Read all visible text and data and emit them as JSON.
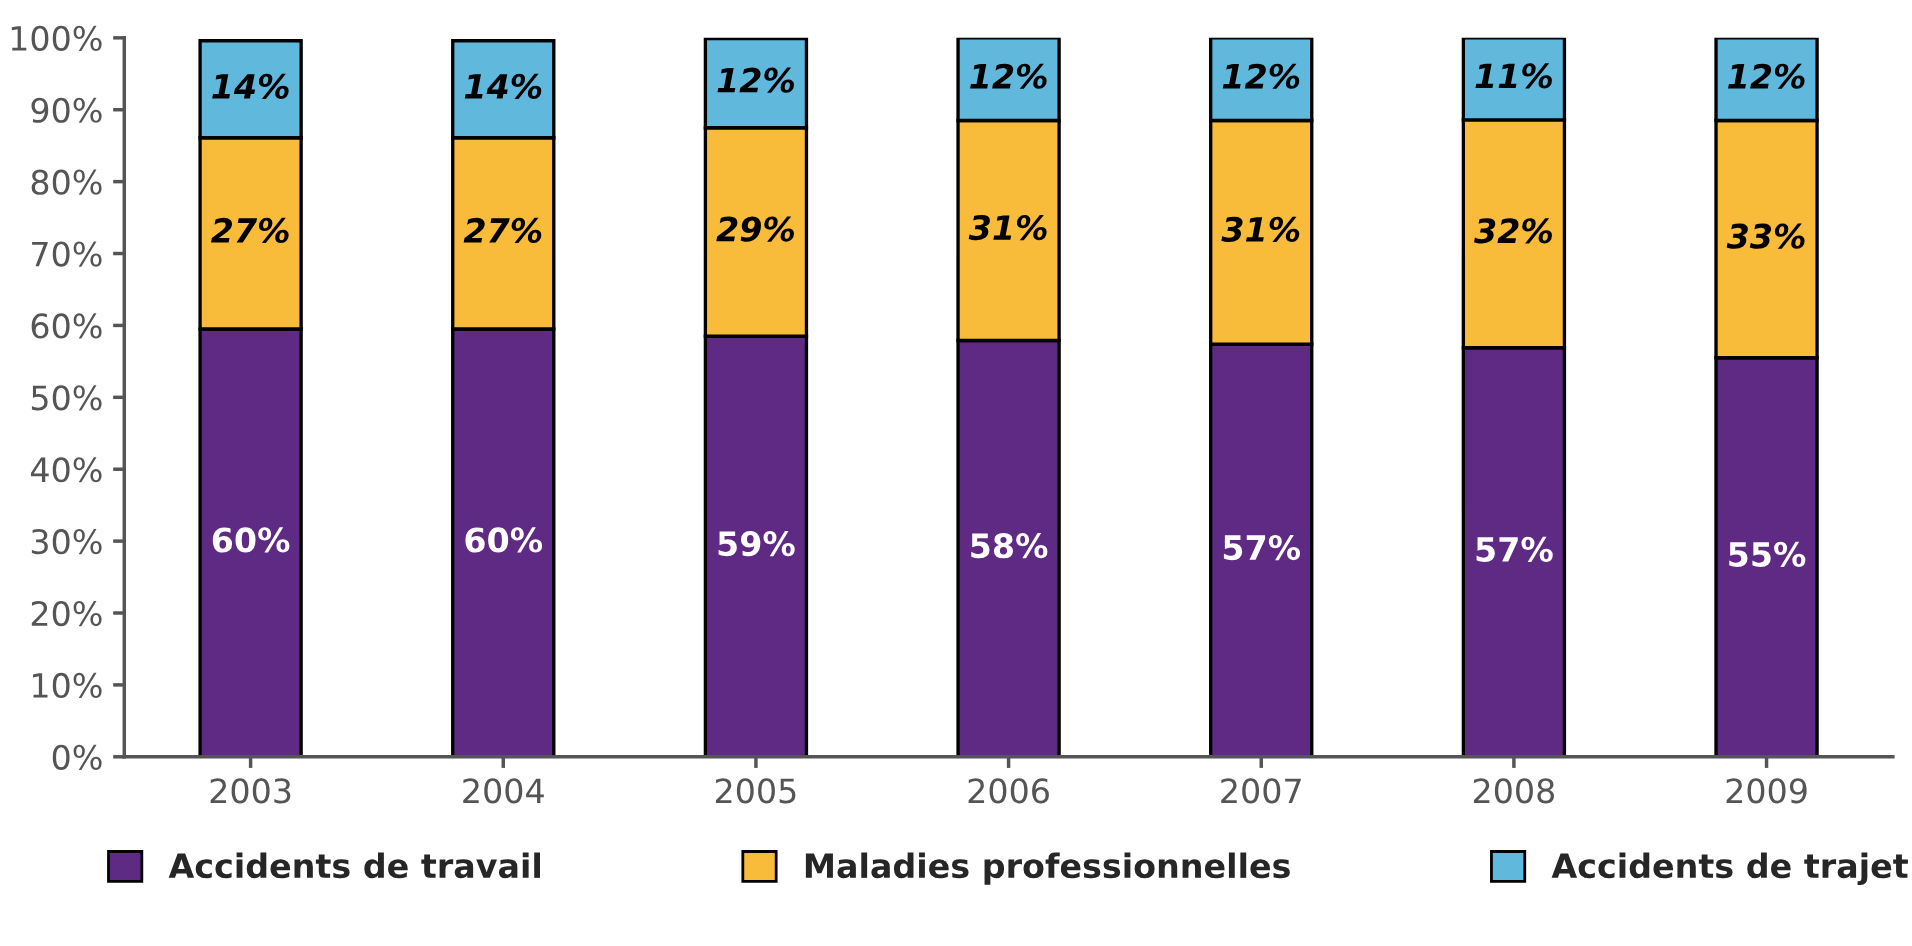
{
  "chart_data": {
    "type": "bar",
    "stacked": true,
    "categories": [
      "2003",
      "2004",
      "2005",
      "2006",
      "2007",
      "2008",
      "2009"
    ],
    "series": [
      {
        "name": "Accidents de travail",
        "color": "#5f2a84",
        "values": [
          59.5,
          59.5,
          58.5,
          57.9,
          57.4,
          56.9,
          55.5
        ],
        "value_labels": [
          "60%",
          "60%",
          "59%",
          "58%",
          "57%",
          "57%",
          "55%"
        ]
      },
      {
        "name": "Maladies professionnelles",
        "color": "#f9bb3a",
        "values": [
          26.6,
          26.6,
          29.0,
          30.6,
          31.1,
          31.7,
          33.0
        ],
        "value_labels": [
          "27%",
          "27%",
          "29%",
          "31%",
          "31%",
          "32%",
          "33%"
        ]
      },
      {
        "name": "Accidents de trajet",
        "color": "#60b8dd",
        "values": [
          13.5,
          13.5,
          12.4,
          11.5,
          11.5,
          11.4,
          11.5
        ],
        "value_labels": [
          "14%",
          "14%",
          "12%",
          "12%",
          "12%",
          "11%",
          "12%"
        ]
      }
    ],
    "ylim": [
      0,
      100
    ],
    "yticks": [
      {
        "value": 0,
        "label": "0%"
      },
      {
        "value": 10,
        "label": "10%"
      },
      {
        "value": 20,
        "label": "20%"
      },
      {
        "value": 30,
        "label": "30%"
      },
      {
        "value": 40,
        "label": "40%"
      },
      {
        "value": 50,
        "label": "50%"
      },
      {
        "value": 60,
        "label": "60%"
      },
      {
        "value": 70,
        "label": "70%"
      },
      {
        "value": 80,
        "label": "80%"
      },
      {
        "value": 90,
        "label": "90%"
      },
      {
        "value": 100,
        "label": "100%"
      }
    ],
    "grid": false,
    "legend": "bottom"
  }
}
